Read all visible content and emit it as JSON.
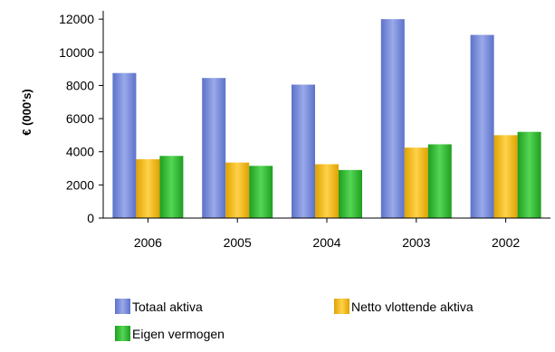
{
  "chart_data": {
    "type": "bar",
    "title": "",
    "xlabel": "",
    "ylabel": "€ (000's)",
    "ylim": [
      0,
      12500
    ],
    "yticks": [
      0,
      2000,
      4000,
      6000,
      8000,
      10000,
      12000
    ],
    "grid": false,
    "legend_position": "bottom",
    "categories": [
      "2006",
      "2005",
      "2004",
      "2003",
      "2002"
    ],
    "series": [
      {
        "name": "Totaal aktiva",
        "color": "#7a8fdb",
        "values": [
          8750,
          8450,
          8050,
          12000,
          11050
        ]
      },
      {
        "name": "Netto vlottende aktiva",
        "color": "#f5b800",
        "values": [
          3550,
          3350,
          3250,
          4250,
          5000
        ]
      },
      {
        "name": "Eigen vermogen",
        "color": "#2eb82e",
        "values": [
          3750,
          3150,
          2900,
          4450,
          5200
        ]
      }
    ]
  }
}
